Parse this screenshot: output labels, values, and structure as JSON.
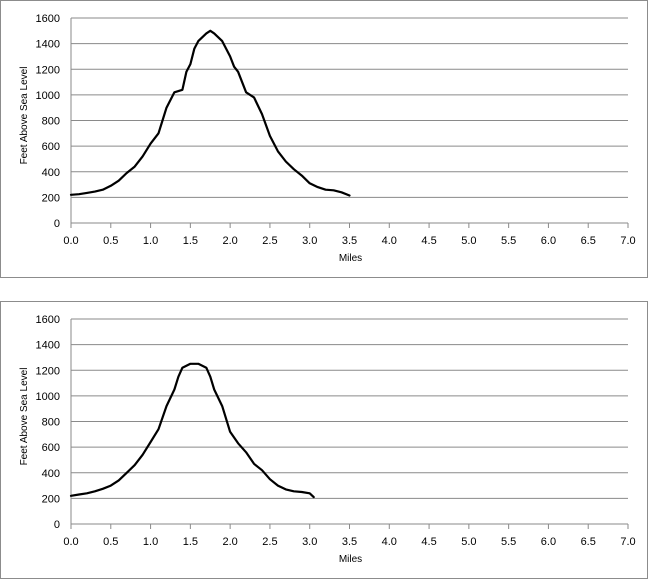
{
  "chart_data": [
    {
      "type": "line",
      "title": "",
      "xlabel": "Miles",
      "ylabel": "Feet Above Sea Level",
      "xlim": [
        0,
        7
      ],
      "ylim": [
        0,
        1600
      ],
      "x_ticks": [
        "0.0",
        "0.5",
        "1.0",
        "1.5",
        "2.0",
        "2.5",
        "3.0",
        "3.5",
        "4.0",
        "4.5",
        "5.0",
        "5.5",
        "6.0",
        "6.5",
        "7.0"
      ],
      "y_ticks": [
        "0",
        "200",
        "400",
        "600",
        "800",
        "1000",
        "1200",
        "1400",
        "1600"
      ],
      "grid": true,
      "legend": "none",
      "line_color": "#000000",
      "series": [
        {
          "x": [
            0.0,
            0.1,
            0.2,
            0.3,
            0.4,
            0.5,
            0.6,
            0.7,
            0.8,
            0.9,
            1.0,
            1.1,
            1.15,
            1.2,
            1.3,
            1.4,
            1.45,
            1.5,
            1.55,
            1.6,
            1.7,
            1.75,
            1.8,
            1.9,
            2.0,
            2.05,
            2.1,
            2.2,
            2.3,
            2.4,
            2.5,
            2.6,
            2.7,
            2.8,
            2.9,
            3.0,
            3.1,
            3.2,
            3.3,
            3.4,
            3.5
          ],
          "y": [
            220,
            225,
            235,
            245,
            260,
            290,
            330,
            390,
            440,
            520,
            620,
            700,
            800,
            900,
            1020,
            1040,
            1180,
            1240,
            1360,
            1420,
            1480,
            1500,
            1480,
            1420,
            1300,
            1220,
            1180,
            1020,
            980,
            850,
            680,
            560,
            480,
            420,
            370,
            310,
            280,
            260,
            255,
            240,
            215
          ]
        }
      ]
    },
    {
      "type": "line",
      "title": "",
      "xlabel": "Miles",
      "ylabel": "Feet Above Sea Level",
      "xlim": [
        0,
        7
      ],
      "ylim": [
        0,
        1600
      ],
      "x_ticks": [
        "0.0",
        "0.5",
        "1.0",
        "1.5",
        "2.0",
        "2.5",
        "3.0",
        "3.5",
        "4.0",
        "4.5",
        "5.0",
        "5.5",
        "6.0",
        "6.5",
        "7.0"
      ],
      "y_ticks": [
        "0",
        "200",
        "400",
        "600",
        "800",
        "1000",
        "1200",
        "1400",
        "1600"
      ],
      "grid": true,
      "legend": "none",
      "line_color": "#000000",
      "series": [
        {
          "x": [
            0.0,
            0.1,
            0.2,
            0.3,
            0.4,
            0.5,
            0.6,
            0.7,
            0.8,
            0.9,
            1.0,
            1.1,
            1.2,
            1.3,
            1.35,
            1.4,
            1.5,
            1.6,
            1.7,
            1.75,
            1.8,
            1.9,
            2.0,
            2.1,
            2.2,
            2.3,
            2.4,
            2.5,
            2.6,
            2.7,
            2.8,
            2.9,
            3.0,
            3.05
          ],
          "y": [
            220,
            230,
            240,
            255,
            275,
            300,
            340,
            400,
            460,
            540,
            640,
            740,
            920,
            1050,
            1150,
            1220,
            1250,
            1250,
            1220,
            1150,
            1050,
            920,
            720,
            630,
            560,
            470,
            420,
            350,
            300,
            270,
            255,
            250,
            240,
            210
          ]
        }
      ]
    }
  ]
}
